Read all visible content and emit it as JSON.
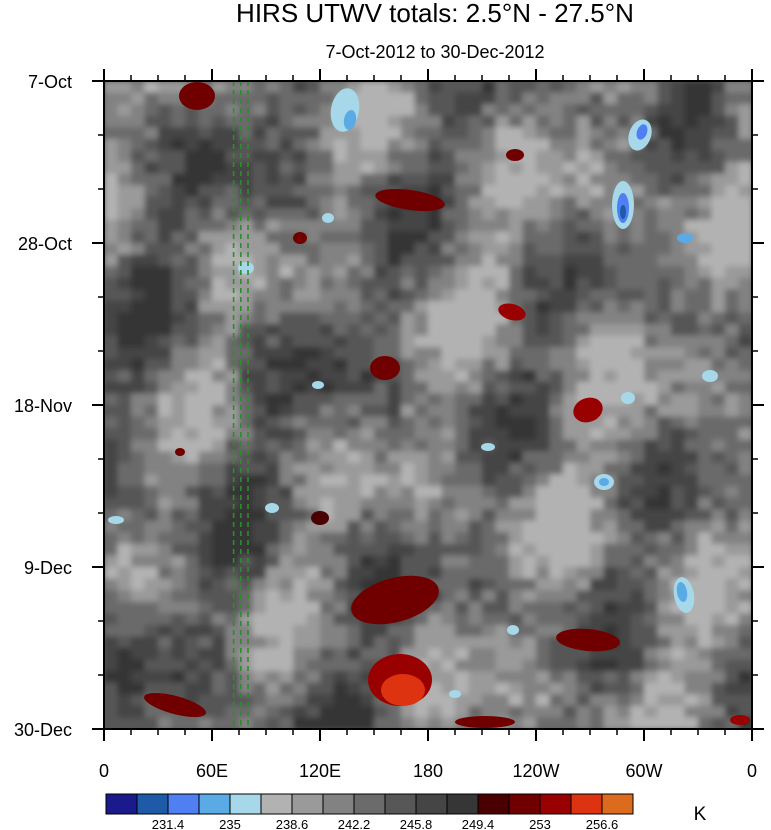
{
  "chart_data": {
    "type": "heatmap",
    "title": "HIRS UTWV totals: 2.5°N - 27.5°N",
    "subtitle": "7-Oct-2012 to 30-Dec-2012",
    "xlabel": "",
    "ylabel": "",
    "x_ticks": [
      "0",
      "60E",
      "120E",
      "180",
      "120W",
      "60W",
      "0"
    ],
    "x_tick_values": [
      0,
      60,
      120,
      180,
      240,
      300,
      360
    ],
    "xlim": [
      0,
      360
    ],
    "y_ticks": [
      "7-Oct",
      "28-Oct",
      "18-Nov",
      "9-Dec",
      "30-Dec"
    ],
    "y_tick_days": [
      0,
      21,
      42,
      63,
      84
    ],
    "ylim_days": [
      0,
      84
    ],
    "y_direction": "time increases downward",
    "colorbar": {
      "unit": "K",
      "levels": [
        229.6,
        231.4,
        233.2,
        235,
        236.8,
        238.6,
        240.4,
        242.2,
        244,
        245.8,
        247.6,
        249.4,
        251.2,
        253,
        254.8,
        256.6
      ],
      "labels": [
        "231.4",
        "235",
        "238.6",
        "242.2",
        "245.8",
        "249.4",
        "253",
        "256.6"
      ],
      "colors": [
        "#1a1a8c",
        "#1f5aa8",
        "#4f7ff2",
        "#5aaae6",
        "#a6d8ea",
        "#b2b2b2",
        "#9a9a9a",
        "#828282",
        "#6b6b6b",
        "#575757",
        "#454545",
        "#363636",
        "#4a0000",
        "#700000",
        "#990000",
        "#dd3311",
        "#dd6b1e"
      ]
    },
    "reference_lines": {
      "style": "dashed green vertical",
      "x_values": [
        72,
        76,
        80
      ]
    },
    "grid": false,
    "legend": "colorbar at bottom"
  }
}
